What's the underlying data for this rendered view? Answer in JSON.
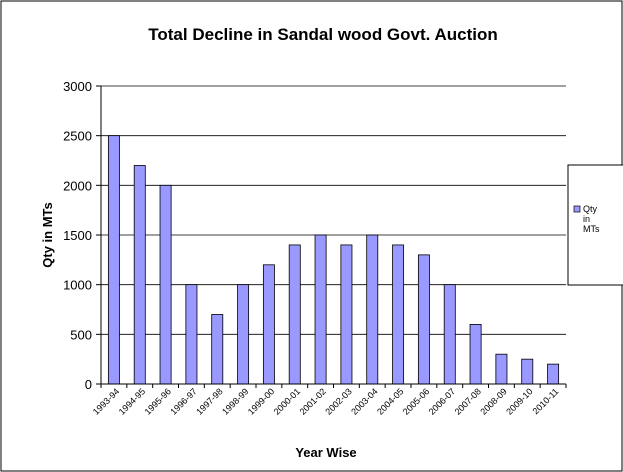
{
  "chart_data": {
    "type": "bar",
    "title": "Total Decline in Sandal wood Govt. Auction",
    "xlabel": "Year Wise",
    "ylabel": "Qty in MTs",
    "categories": [
      "1993-94",
      "1994-95",
      "1995-96",
      "1996-97",
      "1997-98",
      "1998-99",
      "1999-00",
      "2000-01",
      "2001-02",
      "2002-03",
      "2003-04",
      "2004-05",
      "2005-06",
      "2006-07",
      "2007-08",
      "2008-09",
      "2009-10",
      "2010-11"
    ],
    "series": [
      {
        "name": "Qty in MTs",
        "legend_lines": [
          "Qty",
          "in",
          "MTs"
        ],
        "values": [
          2500,
          2200,
          2000,
          1000,
          700,
          1000,
          1200,
          1400,
          1500,
          1400,
          1500,
          1400,
          1300,
          1000,
          600,
          300,
          250,
          200
        ],
        "color": "#9999ff"
      }
    ],
    "ylim": [
      0,
      3000
    ],
    "yticks": [
      0,
      500,
      1000,
      1500,
      2000,
      2500,
      3000
    ],
    "grid": true,
    "legend_position": "right"
  }
}
